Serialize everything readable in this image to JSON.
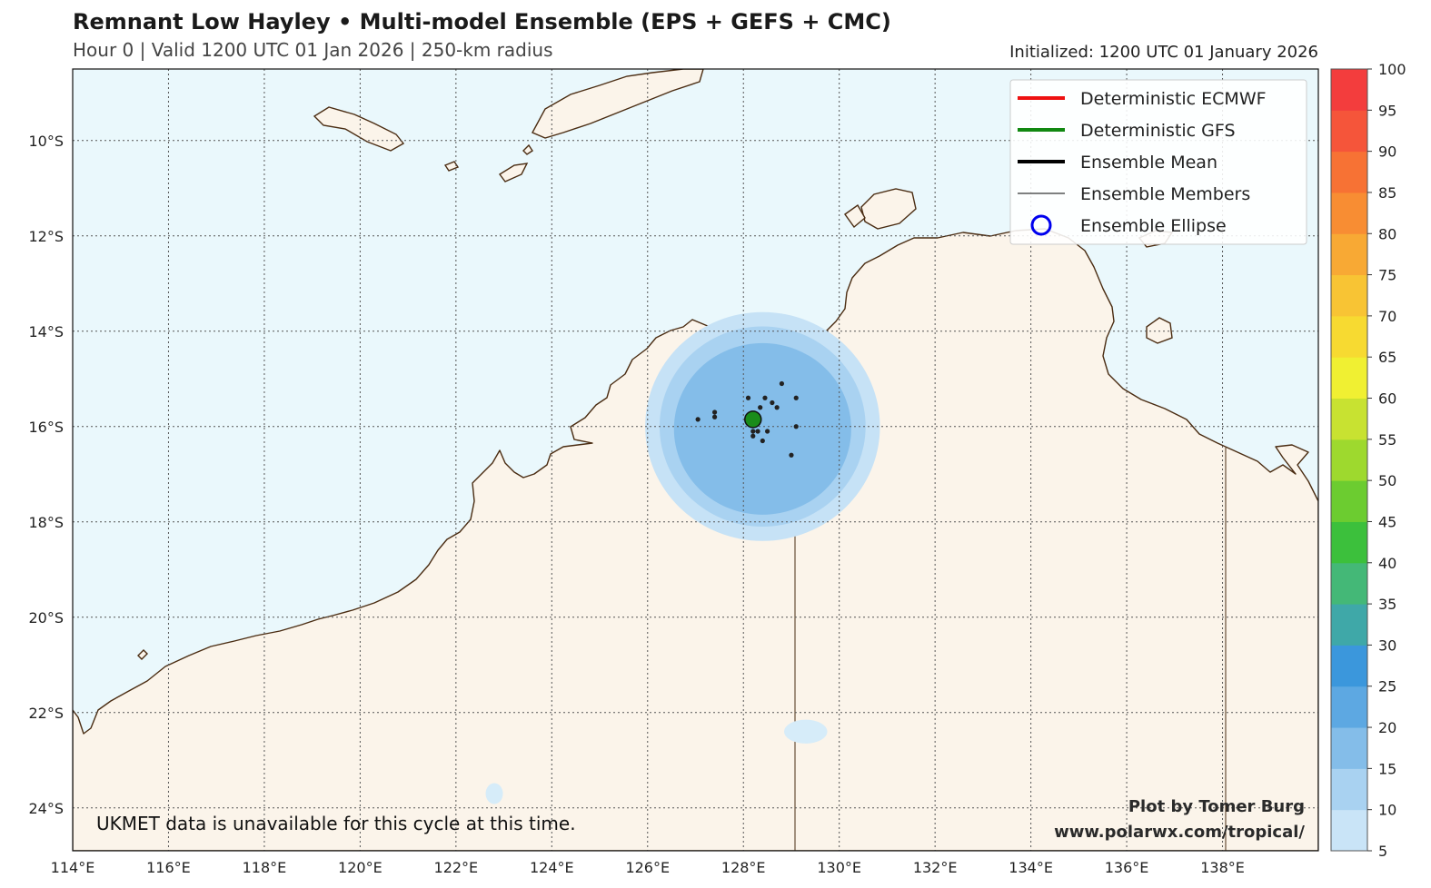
{
  "header": {
    "title": "Remnant Low Hayley • Multi-model Ensemble (EPS + GEFS + CMC)",
    "subtitle": "Hour 0 | Valid 1200 UTC 01 Jan 2026 | 250-km radius",
    "initialized": "Initialized: 1200 UTC 01 January 2026"
  },
  "map": {
    "lon_range": [
      114,
      140
    ],
    "lat_range": [
      -24.9,
      -8.5
    ],
    "lon_ticks": [
      114,
      116,
      118,
      120,
      122,
      124,
      126,
      128,
      130,
      132,
      134,
      136,
      138
    ],
    "lon_tick_labels": [
      "114°E",
      "116°E",
      "118°E",
      "120°E",
      "122°E",
      "124°E",
      "126°E",
      "128°E",
      "130°E",
      "132°E",
      "134°E",
      "136°E",
      "138°E"
    ],
    "lat_ticks": [
      -10,
      -12,
      -14,
      -16,
      -18,
      -20,
      -22,
      -24
    ],
    "lat_tick_labels": [
      "10°S",
      "12°S",
      "14°S",
      "16°S",
      "18°S",
      "20°S",
      "22°S",
      "24°S"
    ],
    "colors": {
      "ocean": "#eaf8fc",
      "land": "#fbf4ea",
      "coast": "#4a2c12",
      "grid": "#555555"
    }
  },
  "probability_blobs": [
    {
      "lon": 128.4,
      "lat": -16.0,
      "r_lon": 2.45,
      "r_lat": 2.4,
      "color": "#c6e2f6",
      "value": 10
    },
    {
      "lon": 128.4,
      "lat": -16.0,
      "r_lon": 2.15,
      "r_lat": 2.1,
      "color": "#a9d2f1",
      "value": 15
    },
    {
      "lon": 128.4,
      "lat": -16.05,
      "r_lon": 1.85,
      "r_lat": 1.8,
      "color": "#84bde9",
      "value": 20
    },
    {
      "lon": 129.3,
      "lat": -22.4,
      "r_lon": 0.45,
      "r_lat": 0.25,
      "color": "#d6ecf9",
      "value": 5
    },
    {
      "lon": 122.8,
      "lat": -23.7,
      "r_lon": 0.18,
      "r_lat": 0.22,
      "color": "#d6ecf9",
      "value": 5
    }
  ],
  "ensemble_members": [
    {
      "lon": 127.05,
      "lat": -15.85
    },
    {
      "lon": 127.4,
      "lat": -15.7
    },
    {
      "lon": 127.4,
      "lat": -15.8
    },
    {
      "lon": 128.1,
      "lat": -15.4
    },
    {
      "lon": 128.35,
      "lat": -15.6
    },
    {
      "lon": 128.45,
      "lat": -15.4
    },
    {
      "lon": 128.6,
      "lat": -15.5
    },
    {
      "lon": 128.7,
      "lat": -15.6
    },
    {
      "lon": 128.8,
      "lat": -15.1
    },
    {
      "lon": 129.1,
      "lat": -15.4
    },
    {
      "lon": 128.2,
      "lat": -16.1
    },
    {
      "lon": 128.3,
      "lat": -16.1
    },
    {
      "lon": 128.5,
      "lat": -16.1
    },
    {
      "lon": 128.2,
      "lat": -16.2
    },
    {
      "lon": 128.4,
      "lat": -16.3
    },
    {
      "lon": 129.1,
      "lat": -16.0
    },
    {
      "lon": 129.0,
      "lat": -16.6
    },
    {
      "lon": 128.25,
      "lat": -15.95
    }
  ],
  "deterministic_gfs_point": {
    "lon": 128.2,
    "lat": -15.85,
    "color": "#1a8c1a"
  },
  "legend": {
    "items": [
      {
        "label": "Deterministic ECMWF",
        "kind": "line",
        "color": "#ee1111",
        "width": 4
      },
      {
        "label": "Deterministic GFS",
        "kind": "line",
        "color": "#118811",
        "width": 4
      },
      {
        "label": "Ensemble Mean",
        "kind": "line",
        "color": "#000000",
        "width": 4
      },
      {
        "label": "Ensemble Members",
        "kind": "line",
        "color": "#000000",
        "width": 1
      },
      {
        "label": "Ensemble Ellipse",
        "kind": "circle",
        "color": "#0000ee",
        "width": 3
      }
    ]
  },
  "colorbar": {
    "labels": [
      "5",
      "10",
      "15",
      "20",
      "25",
      "30",
      "35",
      "40",
      "45",
      "50",
      "55",
      "60",
      "65",
      "70",
      "75",
      "80",
      "85",
      "90",
      "95",
      "100"
    ],
    "colors": [
      "#c9e4f7",
      "#a9d2f1",
      "#84bde9",
      "#5da8e2",
      "#3b97dc",
      "#3fa8a8",
      "#44b877",
      "#3cc03c",
      "#6ccc30",
      "#9ed92e",
      "#c8e231",
      "#f0f032",
      "#f7da31",
      "#f8c434",
      "#f8a934",
      "#f88d33",
      "#f77234",
      "#f5553a",
      "#f33d3d"
    ]
  },
  "notes": {
    "ukmet": "UKMET data is unavailable for this cycle at this time.",
    "credit_line1": "Plot by Tomer Burg",
    "credit_line2": "www.polarwx.com/tropical/"
  }
}
